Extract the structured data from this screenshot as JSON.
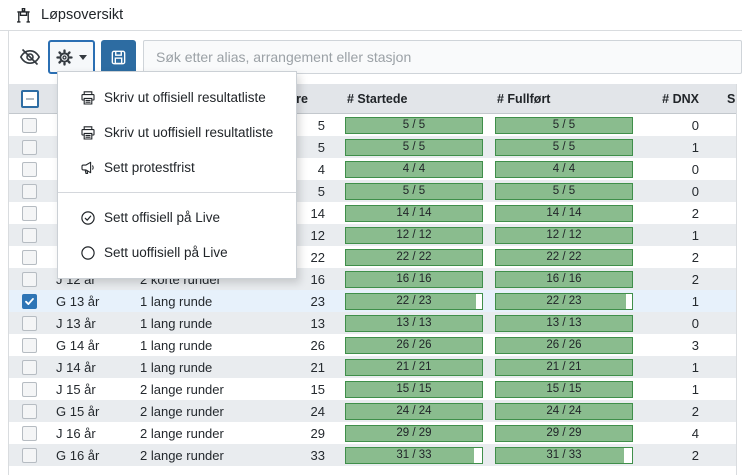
{
  "header": {
    "title": "Løpsoversikt"
  },
  "toolbar": {
    "search_placeholder": "Søk etter alias, arrangement eller stasjon",
    "search_value": ""
  },
  "menu": {
    "items": [
      {
        "icon": "printer-icon",
        "label": "Skriv ut offisiell resultatliste"
      },
      {
        "icon": "printer-icon",
        "label": "Skriv ut uoffisiell resultatliste"
      },
      {
        "icon": "megaphone-icon",
        "label": "Sett protestfrist"
      },
      {
        "icon": "check-circle-icon",
        "label": "Sett offisiell på Live"
      },
      {
        "icon": "circle-icon",
        "label": "Sett uoffisiell på Live"
      }
    ]
  },
  "table": {
    "columns": {
      "class_label": "",
      "course": "",
      "runners": "ere",
      "started": "# Startede",
      "finished": "# Fullført",
      "dnx": "# DNX",
      "sis": "Sis"
    },
    "rows": [
      {
        "class_label": "",
        "course": "",
        "runners": "5",
        "started": {
          "text": "5 / 5",
          "pct": 100
        },
        "finished": {
          "text": "5 / 5",
          "pct": 100
        },
        "dnx": "0",
        "checked": false,
        "selected": false
      },
      {
        "class_label": "",
        "course": "",
        "runners": "5",
        "started": {
          "text": "5 / 5",
          "pct": 100
        },
        "finished": {
          "text": "5 / 5",
          "pct": 100
        },
        "dnx": "1",
        "checked": false,
        "selected": false
      },
      {
        "class_label": "",
        "course": "",
        "runners": "4",
        "started": {
          "text": "4 / 4",
          "pct": 100
        },
        "finished": {
          "text": "4 / 4",
          "pct": 100
        },
        "dnx": "0",
        "checked": false,
        "selected": false
      },
      {
        "class_label": "",
        "course": "",
        "runners": "5",
        "started": {
          "text": "5 / 5",
          "pct": 100
        },
        "finished": {
          "text": "5 / 5",
          "pct": 100
        },
        "dnx": "0",
        "checked": false,
        "selected": false
      },
      {
        "class_label": "",
        "course": "",
        "runners": "14",
        "started": {
          "text": "14 / 14",
          "pct": 100
        },
        "finished": {
          "text": "14 / 14",
          "pct": 100
        },
        "dnx": "2",
        "checked": false,
        "selected": false
      },
      {
        "class_label": "",
        "course": "",
        "runners": "12",
        "started": {
          "text": "12 / 12",
          "pct": 100
        },
        "finished": {
          "text": "12 / 12",
          "pct": 100
        },
        "dnx": "1",
        "checked": false,
        "selected": false
      },
      {
        "class_label": "",
        "course": "",
        "runners": "22",
        "started": {
          "text": "22 / 22",
          "pct": 100
        },
        "finished": {
          "text": "22 / 22",
          "pct": 100
        },
        "dnx": "2",
        "checked": false,
        "selected": false
      },
      {
        "class_label": "J 12 år",
        "course": "2 korte runder",
        "runners": "16",
        "started": {
          "text": "16 / 16",
          "pct": 100
        },
        "finished": {
          "text": "16 / 16",
          "pct": 100
        },
        "dnx": "2",
        "checked": false,
        "selected": false
      },
      {
        "class_label": "G 13 år",
        "course": "1 lang runde",
        "runners": "23",
        "started": {
          "text": "22 / 23",
          "pct": 95.7
        },
        "finished": {
          "text": "22 / 23",
          "pct": 95.7
        },
        "dnx": "1",
        "checked": true,
        "selected": true
      },
      {
        "class_label": "J 13 år",
        "course": "1 lang runde",
        "runners": "13",
        "started": {
          "text": "13 / 13",
          "pct": 100
        },
        "finished": {
          "text": "13 / 13",
          "pct": 100
        },
        "dnx": "0",
        "checked": false,
        "selected": false
      },
      {
        "class_label": "G 14 år",
        "course": "1 lang runde",
        "runners": "26",
        "started": {
          "text": "26 / 26",
          "pct": 100
        },
        "finished": {
          "text": "26 / 26",
          "pct": 100
        },
        "dnx": "3",
        "checked": false,
        "selected": false
      },
      {
        "class_label": "J 14 år",
        "course": "1 lang runde",
        "runners": "21",
        "started": {
          "text": "21 / 21",
          "pct": 100
        },
        "finished": {
          "text": "21 / 21",
          "pct": 100
        },
        "dnx": "1",
        "checked": false,
        "selected": false
      },
      {
        "class_label": "J 15 år",
        "course": "2 lange runder",
        "runners": "15",
        "started": {
          "text": "15 / 15",
          "pct": 100
        },
        "finished": {
          "text": "15 / 15",
          "pct": 100
        },
        "dnx": "1",
        "checked": false,
        "selected": false
      },
      {
        "class_label": "G 15 år",
        "course": "2 lange runder",
        "runners": "24",
        "started": {
          "text": "24 / 24",
          "pct": 100
        },
        "finished": {
          "text": "24 / 24",
          "pct": 100
        },
        "dnx": "2",
        "checked": false,
        "selected": false
      },
      {
        "class_label": "J 16 år",
        "course": "2 lange runder",
        "runners": "29",
        "started": {
          "text": "29 / 29",
          "pct": 100
        },
        "finished": {
          "text": "29 / 29",
          "pct": 100
        },
        "dnx": "4",
        "checked": false,
        "selected": false
      },
      {
        "class_label": "G 16 år",
        "course": "2 lange runder",
        "runners": "33",
        "started": {
          "text": "31 / 33",
          "pct": 93.9
        },
        "finished": {
          "text": "31 / 33",
          "pct": 93.9
        },
        "dnx": "2",
        "checked": false,
        "selected": false
      }
    ]
  },
  "colors": {
    "accent_blue": "#2d6ca2",
    "focus_border_blue": "#2b6fb3",
    "checked_blue": "#2e75b6",
    "progress_fill_green": "#8abc8e",
    "progress_border_green": "#3f8f4a",
    "selected_row_bg": "#e7f1fb",
    "stripe_row_bg": "#e9ecef",
    "header_row_bg": "#e2e5e9"
  }
}
